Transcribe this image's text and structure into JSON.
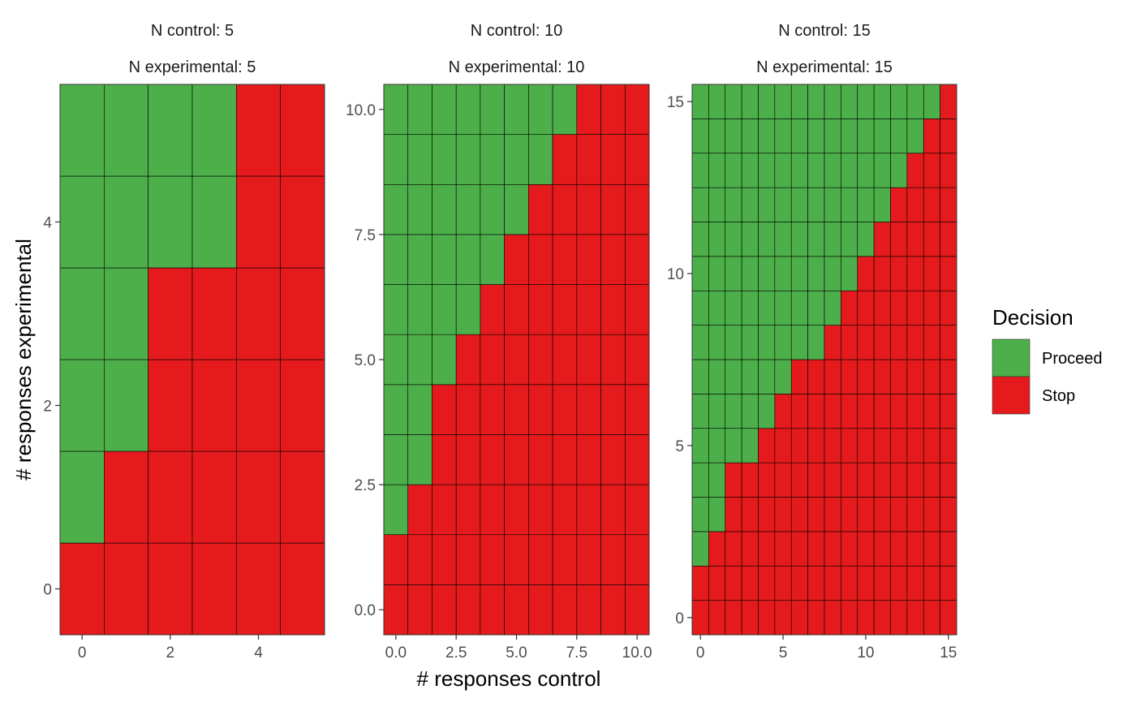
{
  "chart_data": {
    "type": "heatmap",
    "xlabel": "# responses control",
    "ylabel": "# responses experimental",
    "colors": {
      "Proceed": "#4daf4a",
      "Stop": "#e41a1c"
    },
    "legend": {
      "title": "Decision",
      "position": "right",
      "entries": [
        {
          "label": "Proceed",
          "color": "#4daf4a"
        },
        {
          "label": "Stop",
          "color": "#e41a1c"
        }
      ]
    },
    "panels": [
      {
        "strip_control": "N control: 5",
        "strip_experimental": "N experimental: 5",
        "n": 5,
        "x_range": [
          -0.5,
          5.5
        ],
        "y_range": [
          -0.5,
          5.5
        ],
        "x_ticks": [
          0,
          2,
          4
        ],
        "x_tick_labels": [
          "0",
          "2",
          "4"
        ],
        "y_ticks": [
          0,
          2,
          4
        ],
        "y_tick_labels": [
          "0",
          "2",
          "4"
        ],
        "proceed_min_experimental_by_control": [
          1,
          2,
          4,
          4,
          6,
          6
        ]
      },
      {
        "strip_control": "N control: 10",
        "strip_experimental": "N experimental: 10",
        "n": 10,
        "x_range": [
          -0.5,
          10.5
        ],
        "y_range": [
          -0.5,
          10.5
        ],
        "x_ticks": [
          0,
          2.5,
          5,
          7.5,
          10
        ],
        "x_tick_labels": [
          "0.0",
          "2.5",
          "5.0",
          "7.5",
          "10.0"
        ],
        "y_ticks": [
          0,
          2.5,
          5,
          7.5,
          10
        ],
        "y_tick_labels": [
          "0.0",
          "2.5",
          "5.0",
          "7.5",
          "10.0"
        ],
        "proceed_min_experimental_by_control": [
          2,
          3,
          5,
          6,
          7,
          8,
          9,
          10,
          11,
          11,
          11
        ]
      },
      {
        "strip_control": "N control: 15",
        "strip_experimental": "N experimental: 15",
        "n": 15,
        "x_range": [
          -0.5,
          15.5
        ],
        "y_range": [
          -0.5,
          15.5
        ],
        "x_ticks": [
          0,
          5,
          10,
          15
        ],
        "x_tick_labels": [
          "0",
          "5",
          "10",
          "15"
        ],
        "y_ticks": [
          0,
          5,
          10,
          15
        ],
        "y_tick_labels": [
          "0",
          "5",
          "10",
          "15"
        ],
        "proceed_min_experimental_by_control": [
          2,
          3,
          5,
          5,
          6,
          7,
          8,
          8,
          9,
          10,
          11,
          12,
          13,
          14,
          15,
          16
        ]
      }
    ]
  }
}
